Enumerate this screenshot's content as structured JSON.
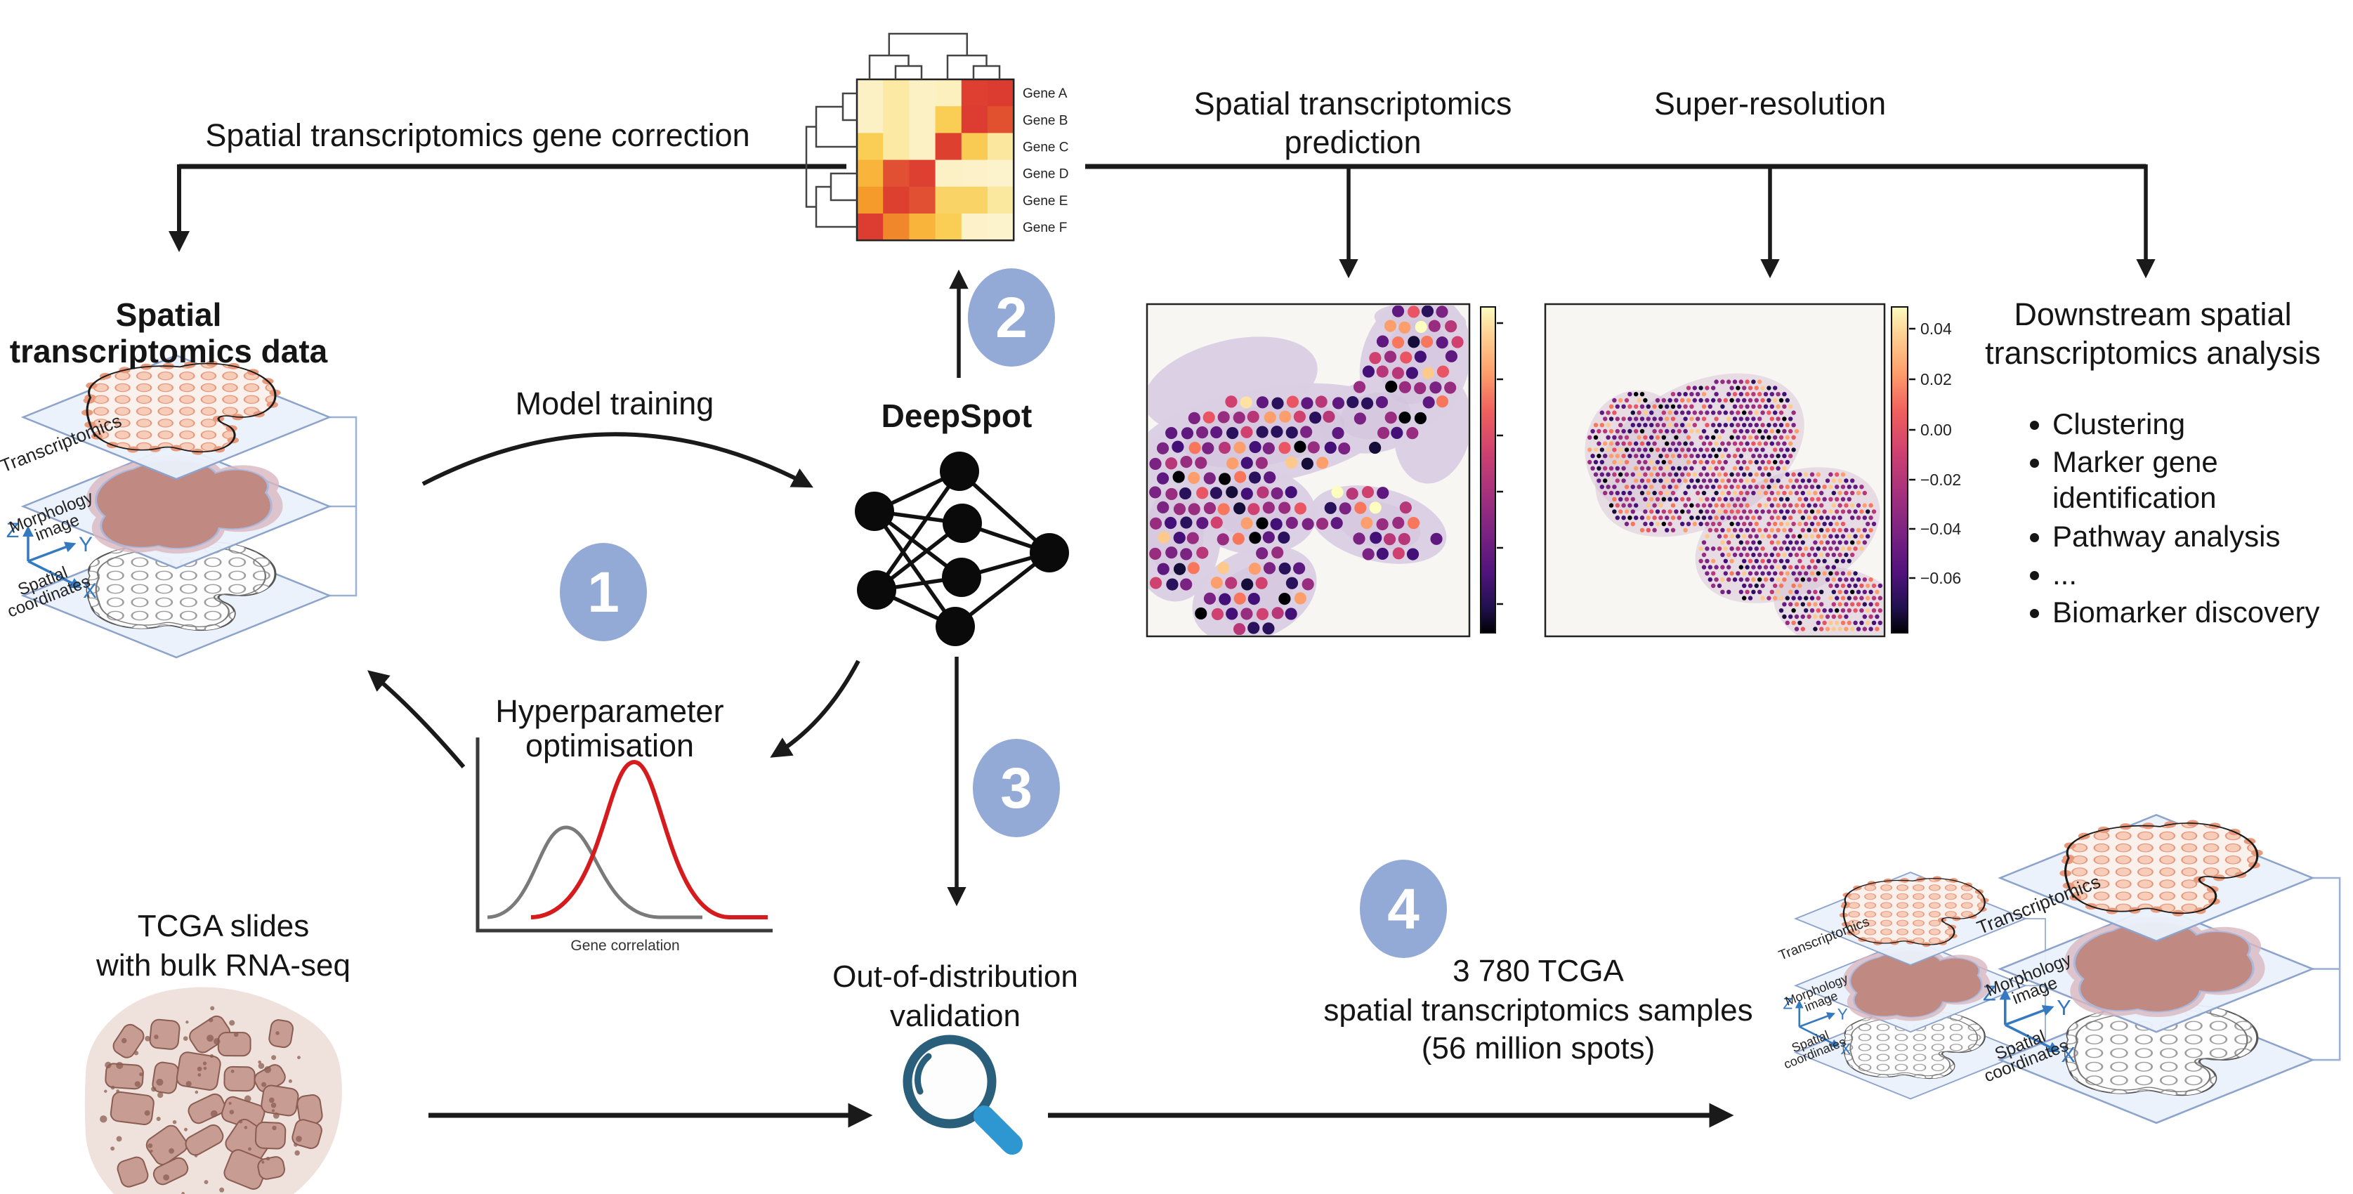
{
  "labels": {
    "gene_correction": "Spatial transcriptomics gene correction",
    "st_prediction_line1": "Spatial transcriptomics",
    "st_prediction_line2": "prediction",
    "super_resolution": "Super-resolution",
    "st_data_line1": "Spatial",
    "st_data_line2": "transcriptomics data",
    "model_training": "Model training",
    "deepspot": "DeepSpot",
    "hyperparam_line1": "Hyperparameter",
    "hyperparam_line2": "optimisation",
    "gene_correlation": "Gene correlation",
    "tcga_line1": "TCGA slides",
    "tcga_line2": "with bulk RNA-seq",
    "ood_line1": "Out-of-distribution",
    "ood_line2": "validation",
    "step4_line1": "3 780 TCGA",
    "step4_line2": "spatial transcriptomics samples",
    "step4_line3": "(56 million spots)",
    "downstream_line1": "Downstream spatial",
    "downstream_line2": "transcriptomics analysis"
  },
  "steps": [
    "1",
    "2",
    "3",
    "4"
  ],
  "heatmap": {
    "genes": [
      "Gene A",
      "Gene B",
      "Gene C",
      "Gene D",
      "Gene E",
      "Gene F"
    ],
    "cells": [
      [
        "#FCF1C5",
        "#FBE9A4",
        "#FCF1C5",
        "#FCF0BE",
        "#DE3F31",
        "#DC3B2F"
      ],
      [
        "#FCF1C5",
        "#FBE9A4",
        "#FCF1C5",
        "#FACD55",
        "#DD3D30",
        "#E1512F"
      ],
      [
        "#FACD55",
        "#FBE9A4",
        "#FCF1C5",
        "#DE4030",
        "#FACB52",
        "#FBE79E"
      ],
      [
        "#F8B43B",
        "#E25033",
        "#DD3F30",
        "#FCF1C5",
        "#FCF1C8",
        "#FCF2CB"
      ],
      [
        "#F49B2B",
        "#DE4030",
        "#E25033",
        "#FAD367",
        "#FAD367",
        "#FBE89F"
      ],
      [
        "#DD3D30",
        "#F0882B",
        "#F8B43B",
        "#FACD55",
        "#FCF1C8",
        "#FCF2CB"
      ]
    ]
  },
  "colorbar_ticks": [
    "0.04",
    "0.02",
    "0.00",
    "−0.02",
    "−0.04",
    "−0.06"
  ],
  "downstream_bullets": [
    "Clustering",
    "Marker gene identification",
    "Pathway analysis",
    "...",
    "Biomarker discovery"
  ],
  "stack": {
    "layer1": "Transcriptomics",
    "layer2_line1": "Morphology",
    "layer2_line2": "image",
    "layer3_line1": "Spatial",
    "layer3_line2": "coordinates",
    "axis_z": "Z",
    "axis_y": "Y",
    "axis_x": "X"
  },
  "colors": {
    "step_circle": "#93A9D6",
    "arrow": "#1a1a1a",
    "plane_fill": "#EAF1FB",
    "plane_stroke": "#8CA3CC",
    "bracket": "#9DB1D3",
    "axis_blue": "#3579C0",
    "magnifier_ring": "#2A5F7C",
    "magnifier_handle": "#2E96D0",
    "curve_gray": "#7a7a7a",
    "curve_red": "#D61B1E",
    "plot_bg": "#F8F6F2",
    "tissue_purple": "#DACFE3",
    "tissue_purple2": "#D5C2D6",
    "salmon_dot": "#F7CDBA",
    "salmon_dot_dark": "#E8997B",
    "morph_fill": "#C08A82",
    "morph_halo": "#D9B6BF",
    "tcga_bg": "#EFE1DB",
    "tcga_cell": "#C79C92",
    "tcga_cell_stroke": "#8A5D52"
  }
}
